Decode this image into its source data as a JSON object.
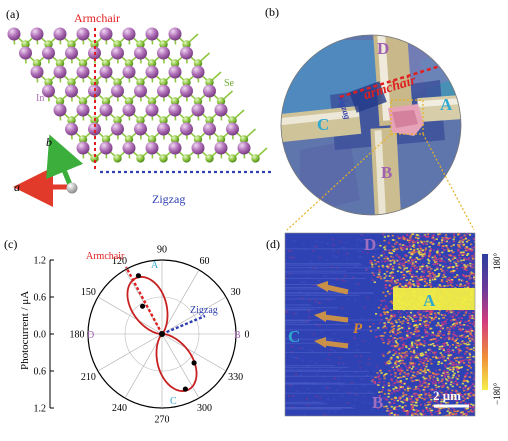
{
  "panels": {
    "a": {
      "label": "(a)",
      "armchair": "Armchair",
      "zigzag": "Zigzag",
      "se": "Se",
      "in": "In",
      "axis_a": "a",
      "axis_b": "b"
    },
    "b": {
      "label": "(b)",
      "armchair": "armchair",
      "zigzag": "zigzag",
      "contacts": [
        "A",
        "B",
        "C",
        "D"
      ]
    },
    "c": {
      "label": "(c)",
      "armchair": "Armchair",
      "zigzag": "Zigzag",
      "contacts": [
        "A",
        "B",
        "C",
        "D"
      ]
    },
    "d": {
      "label": "(d)",
      "contacts": [
        "A",
        "B",
        "C",
        "D"
      ],
      "p_label": "P",
      "scale_bar": "2 μm",
      "colorbar_max": "180°",
      "colorbar_min": "−180°"
    }
  },
  "colors": {
    "armchair": "#e02020",
    "zigzag": "#3040b0",
    "in_atom": "#b070b8",
    "se_atom": "#8ec63f",
    "contact_label": "#30a8d0",
    "curve": "#c82020"
  },
  "chart_data": {
    "type": "polar",
    "ylabel": "Photocurrent / μA",
    "r_ticks": [
      "1.2",
      "0.6",
      "0.0",
      "0.6",
      "1.2"
    ],
    "angle_ticks": [
      "0",
      "30",
      "60",
      "90",
      "120",
      "150",
      "180",
      "210",
      "240",
      "270",
      "300",
      "330"
    ],
    "r_max": 1.2,
    "lobe_angle_deg": 115,
    "lobe_peak": 1.0,
    "points": [
      {
        "angle": 112,
        "r": 1.02
      },
      {
        "angle": 125,
        "r": 0.55
      },
      {
        "angle": 293,
        "r": 0.97
      },
      {
        "angle": 318,
        "r": 0.7
      }
    ]
  }
}
